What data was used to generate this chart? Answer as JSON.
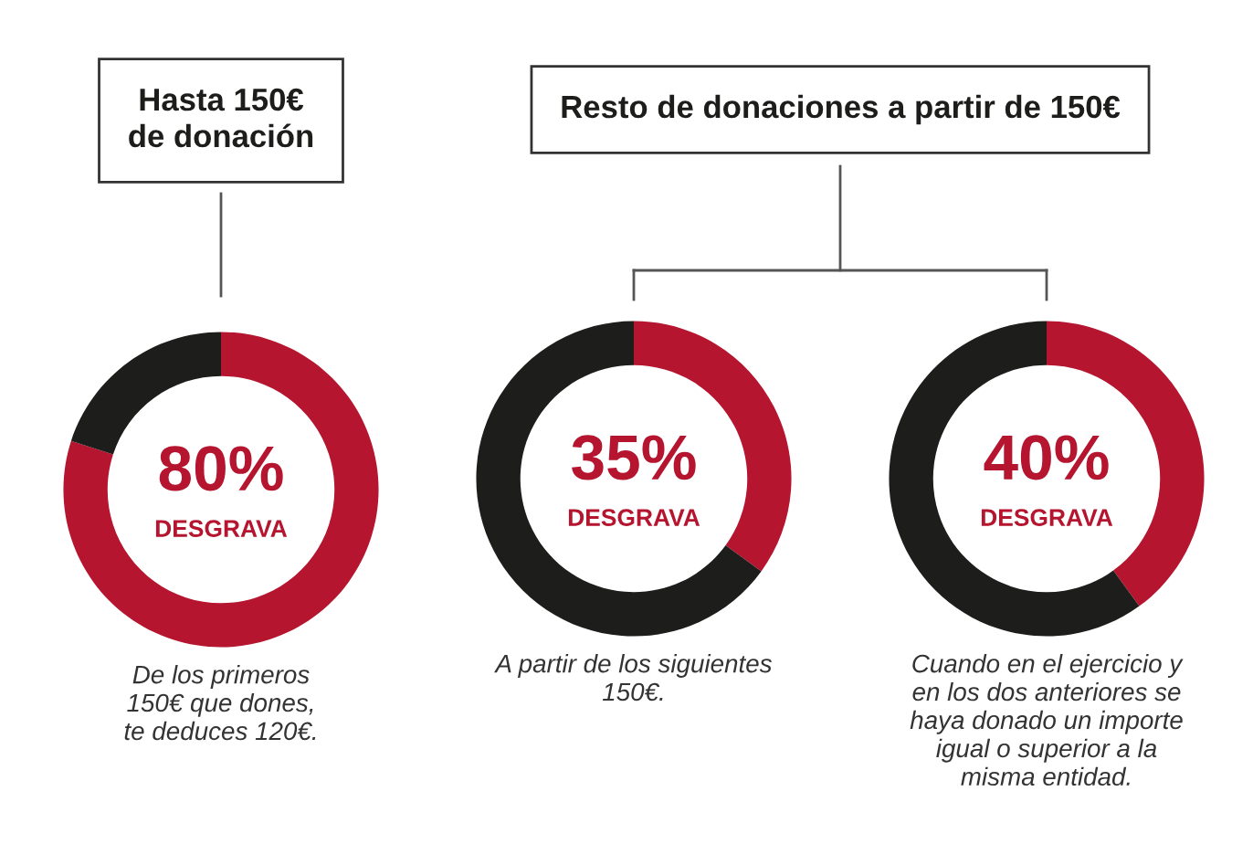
{
  "chart_data": [
    {
      "type": "donut",
      "title": "Hasta 150€\nde donación",
      "categories": [
        null,
        null
      ],
      "values": [
        80,
        20
      ],
      "colors": [
        "#b5152f",
        "#1d1d1b"
      ],
      "value_labels": [
        "80%",
        null
      ],
      "annotations": [
        "DESGRAVA",
        "De los primeros\n150€ que dones,\nte deduces 120€."
      ]
    },
    {
      "type": "donut",
      "title": "Resto de donaciones a partir de 150€",
      "categories": [
        null,
        null
      ],
      "values": [
        35,
        65
      ],
      "colors": [
        "#b5152f",
        "#1d1d1b"
      ],
      "value_labels": [
        "35%",
        null
      ],
      "annotations": [
        "DESGRAVA",
        "A partir de los siguientes\n150€."
      ]
    },
    {
      "type": "donut",
      "categories": [
        null,
        null
      ],
      "values": [
        40,
        60
      ],
      "colors": [
        "#b5152f",
        "#1d1d1b"
      ],
      "value_labels": [
        "40%",
        null
      ],
      "annotations": [
        "DESGRAVA",
        "Cuando en el ejercicio y\nen los dos anteriores se\nhaya donado un importe\nigual o superior a la\nmisma entidad."
      ]
    }
  ]
}
